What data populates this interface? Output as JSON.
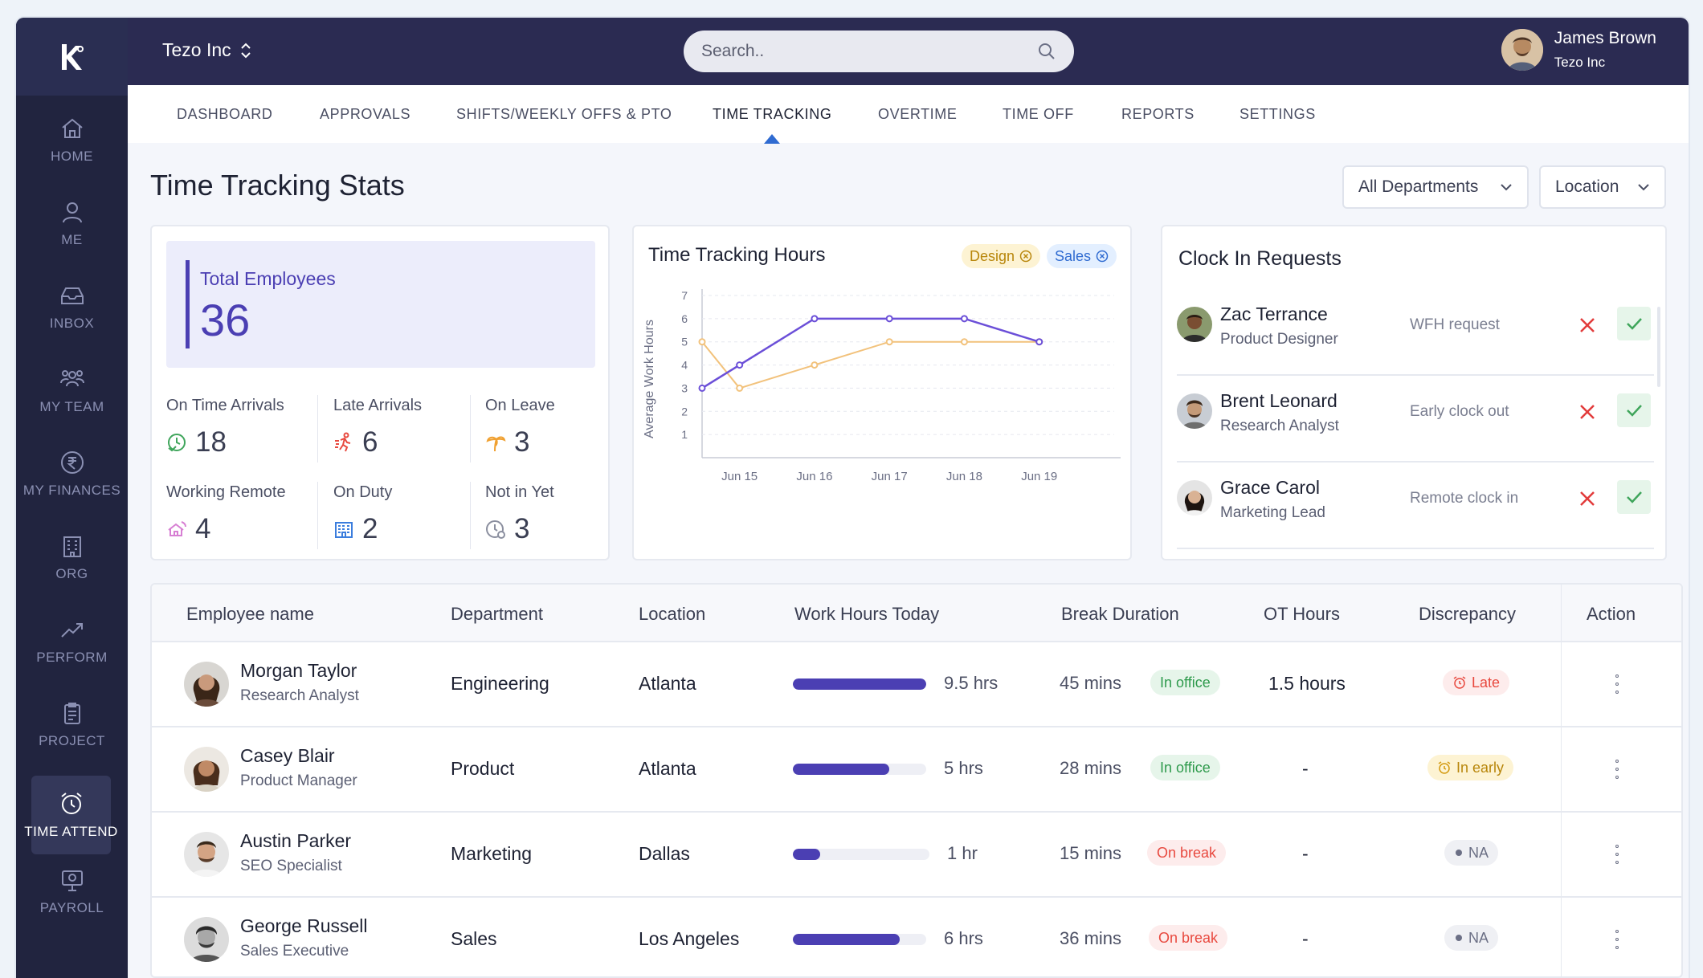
{
  "app": {
    "company": "Tezo Inc"
  },
  "search": {
    "placeholder": "Search.."
  },
  "user": {
    "name": "James Brown",
    "org": "Tezo Inc"
  },
  "sidebar": {
    "items": [
      {
        "label": "HOME",
        "icon": "home-icon"
      },
      {
        "label": "ME",
        "icon": "user-icon"
      },
      {
        "label": "INBOX",
        "icon": "inbox-icon"
      },
      {
        "label": "MY TEAM",
        "icon": "team-icon"
      },
      {
        "label": "MY FINANCES",
        "icon": "rupee-icon"
      },
      {
        "label": "ORG",
        "icon": "building-icon"
      },
      {
        "label": "PERFORM",
        "icon": "trend-icon"
      },
      {
        "label": "PROJECT",
        "icon": "clipboard-icon"
      },
      {
        "label": "TIME ATTEND",
        "icon": "alarm-clock-icon",
        "active": true
      },
      {
        "label": "PAYROLL",
        "icon": "payroll-icon"
      }
    ]
  },
  "tabs": [
    "DASHBOARD",
    "APPROVALS",
    "SHIFTS/WEEKLY OFFS & PTO",
    "TIME TRACKING",
    "OVERTIME",
    "TIME OFF",
    "REPORTS",
    "SETTINGS"
  ],
  "active_tab": "TIME TRACKING",
  "page": {
    "title": "Time Tracking Stats"
  },
  "filters": {
    "departments": "All Departments",
    "location": "Location"
  },
  "stats": {
    "total_label": "Total Employees",
    "total_value": "36",
    "items": [
      {
        "label": "On Time Arrivals",
        "value": "18",
        "icon": "clock-check-icon",
        "color": "#3fa55b"
      },
      {
        "label": "Late Arrivals",
        "value": "6",
        "icon": "running-icon",
        "color": "#e8493f"
      },
      {
        "label": "On Leave",
        "value": "3",
        "icon": "palm-tree-icon",
        "color": "#f0a030"
      },
      {
        "label": "Working Remote",
        "value": "4",
        "icon": "remote-home-icon",
        "color": "#d77fd3"
      },
      {
        "label": "On Duty",
        "value": "2",
        "icon": "office-building-icon",
        "color": "#3b7ddd"
      },
      {
        "label": "Not in Yet",
        "value": "3",
        "icon": "clock-pending-icon",
        "color": "#8b8f9f"
      }
    ]
  },
  "chart": {
    "title": "Time Tracking Hours",
    "pills": [
      {
        "label": "Design",
        "color": "#b8860b",
        "bg": "#fdf3d3"
      },
      {
        "label": "Sales",
        "color": "#2f6bd1",
        "bg": "#e3efff"
      }
    ]
  },
  "chart_data": {
    "type": "line",
    "title": "Time Tracking Hours",
    "xlabel": "",
    "ylabel": "Average Work Hours",
    "categories": [
      "Jun 15",
      "Jun 16",
      "Jun 17",
      "Jun 18",
      "Jun 19"
    ],
    "x": [
      14.5,
      15,
      15.5,
      16,
      17,
      18,
      19
    ],
    "ylim": [
      0,
      7
    ],
    "yticks": [
      1,
      2,
      3,
      4,
      5,
      6,
      7
    ],
    "grid": true,
    "series": [
      {
        "name": "Sales",
        "color": "#6b4fd8",
        "x": [
          14.5,
          15,
          16,
          17,
          18,
          19
        ],
        "values": [
          3,
          4,
          6,
          6,
          6,
          5
        ]
      },
      {
        "name": "Design",
        "color": "#f2c27c",
        "x": [
          14.5,
          15,
          16,
          17,
          18,
          19
        ],
        "values": [
          5,
          3,
          4,
          5,
          5,
          5
        ]
      }
    ]
  },
  "requests": {
    "title": "Clock In Requests",
    "items": [
      {
        "name": "Zac Terrance",
        "role": "Product Designer",
        "type": "WFH request"
      },
      {
        "name": "Brent Leonard",
        "role": "Research Analyst",
        "type": "Early clock out"
      },
      {
        "name": "Grace Carol",
        "role": "Marketing Lead",
        "type": "Remote clock in"
      }
    ]
  },
  "table": {
    "headers": [
      "Employee name",
      "Department",
      "Location",
      "Work Hours Today",
      "Break Duration",
      "OT Hours",
      "Discrepancy",
      "Action"
    ],
    "rows": [
      {
        "name": "Morgan Taylor",
        "role": "Research Analyst",
        "dept": "Engineering",
        "loc": "Atlanta",
        "hours": "9.5 hrs",
        "progress": 1.0,
        "brk": "45 mins",
        "status": "In office",
        "ot": "1.5 hours",
        "disc": "Late",
        "disc_icon": "alarm-clock-icon"
      },
      {
        "name": "Casey Blair",
        "role": "Product Manager",
        "dept": "Product",
        "loc": "Atlanta",
        "hours": "5 hrs",
        "progress": 0.72,
        "brk": "28 mins",
        "status": "In office",
        "ot": "-",
        "disc": "In early",
        "disc_icon": "alarm-clock-icon"
      },
      {
        "name": "Austin Parker",
        "role": "SEO Specialist",
        "dept": "Marketing",
        "loc": "Dallas",
        "hours": "1 hr",
        "progress": 0.2,
        "brk": "15 mins",
        "status": "On break",
        "ot": "-",
        "disc": "NA",
        "disc_icon": "dot-icon"
      },
      {
        "name": "George Russell",
        "role": "Sales Executive",
        "dept": "Sales",
        "loc": "Los Angeles",
        "hours": "6 hrs",
        "progress": 0.8,
        "brk": "36 mins",
        "status": "On break",
        "ot": "-",
        "disc": "NA",
        "disc_icon": "dot-icon"
      }
    ]
  }
}
